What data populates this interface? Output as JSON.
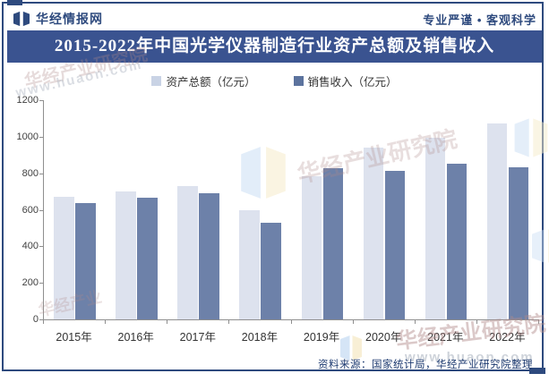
{
  "header": {
    "brand": "华经情报网",
    "slogan": "专业严谨 • 客观科学"
  },
  "title": "2015-2022年中国光学仪器制造行业资产总额及销售收入",
  "footer": {
    "source": "资料来源：国家统计局，华经产业研究院整理"
  },
  "watermarks": {
    "brand_text": "华经产业研究院",
    "site_text": "www.huaon.com"
  },
  "colors": {
    "frame_navy": "#2E4A7E",
    "title_bar_bg": "#3A5390",
    "title_text": "#FFFFFF",
    "series1_bar": "#DDE2EE",
    "series2_bar": "#6D81A9",
    "legend1_swatch": "#C9D3E5",
    "legend2_swatch": "#5C739E",
    "axis_gray": "#8F8F8F",
    "footer_text": "#1D3A70"
  },
  "chart_data": {
    "type": "bar",
    "categories": [
      "2015年",
      "2016年",
      "2017年",
      "2018年",
      "2019年",
      "2020年",
      "2021年",
      "2022年"
    ],
    "series": [
      {
        "name": "资产总额（亿元）",
        "values": [
          670,
          700,
          730,
          600,
          785,
          940,
          995,
          1075
        ],
        "color": "#DDE2EE"
      },
      {
        "name": "销售收入（亿元）",
        "values": [
          635,
          665,
          690,
          530,
          830,
          815,
          850,
          835
        ],
        "color": "#6D81A9"
      }
    ],
    "title": "2015-2022年中国光学仪器制造行业资产总额及销售收入",
    "xlabel": "",
    "ylabel": "",
    "ylim": [
      0,
      1200
    ],
    "ytick_step": 200,
    "grid": false,
    "legend_position": "top",
    "legend": [
      "资产总额（亿元）",
      "销售收入（亿元）"
    ]
  }
}
